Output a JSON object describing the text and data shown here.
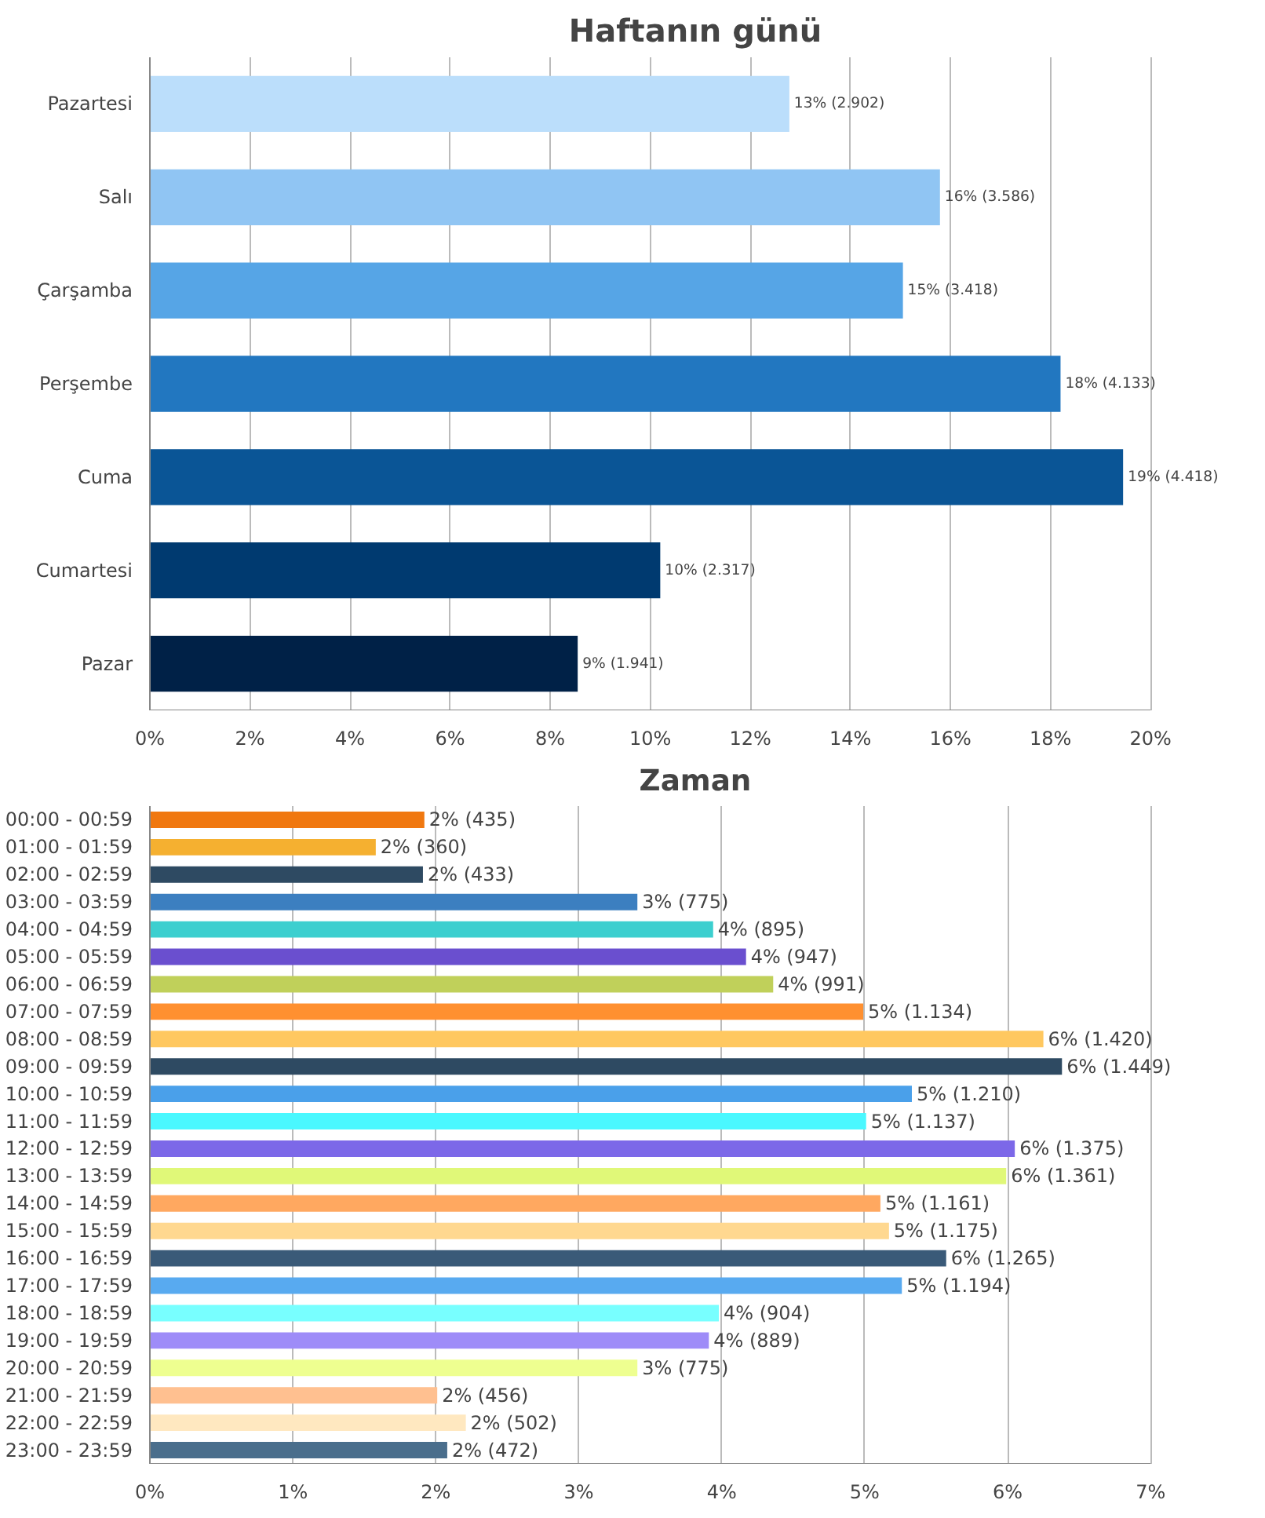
{
  "chart_data": [
    {
      "type": "bar",
      "orientation": "horizontal",
      "title": "Haftanın günü",
      "categories": [
        "Pazartesi",
        "Salı",
        "Çarşamba",
        "Perşembe",
        "Cuma",
        "Cumartesi",
        "Pazar"
      ],
      "values": [
        12.78,
        15.79,
        15.05,
        18.2,
        19.45,
        10.2,
        8.55
      ],
      "colors": [
        "#bbdefb",
        "#90c5f3",
        "#56a5e6",
        "#2277c0",
        "#0a5596",
        "#003a70",
        "#002147"
      ],
      "value_labels": [
        "13% (2.902)",
        "16% (3.586)",
        "15% (3.418)",
        "18% (4.133)",
        "19% (4.418)",
        "10% (2.317)",
        "9% (1.941)"
      ],
      "xlim": [
        0,
        20
      ],
      "xticks": [
        {
          "value": 0,
          "label": "0%"
        },
        {
          "value": 2,
          "label": "2%"
        },
        {
          "value": 4,
          "label": "4%"
        },
        {
          "value": 6,
          "label": "6%"
        },
        {
          "value": 8,
          "label": "8%"
        },
        {
          "value": 10,
          "label": "10%"
        },
        {
          "value": 12,
          "label": "12%"
        },
        {
          "value": 14,
          "label": "14%"
        },
        {
          "value": 16,
          "label": "16%"
        },
        {
          "value": 18,
          "label": "18%"
        },
        {
          "value": 20,
          "label": "20%"
        }
      ],
      "grid": "x"
    },
    {
      "type": "bar",
      "orientation": "horizontal",
      "title": "Zaman",
      "categories": [
        "00:00 - 00:59",
        "01:00 - 01:59",
        "02:00 - 02:59",
        "03:00 - 03:59",
        "04:00 - 04:59",
        "05:00 - 05:59",
        "06:00 - 06:59",
        "07:00 - 07:59",
        "08:00 - 08:59",
        "09:00 - 09:59",
        "10:00 - 10:59",
        "11:00 - 11:59",
        "12:00 - 12:59",
        "13:00 - 13:59",
        "14:00 - 14:59",
        "15:00 - 15:59",
        "16:00 - 16:59",
        "17:00 - 17:59",
        "18:00 - 18:59",
        "19:00 - 19:59",
        "20:00 - 20:59",
        "21:00 - 21:59",
        "22:00 - 22:59",
        "23:00 - 23:59"
      ],
      "values": [
        1.92,
        1.58,
        1.91,
        3.41,
        3.94,
        4.17,
        4.36,
        4.99,
        6.25,
        6.38,
        5.33,
        5.01,
        6.05,
        5.99,
        5.11,
        5.17,
        5.57,
        5.26,
        3.98,
        3.91,
        3.41,
        2.01,
        2.21,
        2.08
      ],
      "colors": [
        "#f07810",
        "#f5b030",
        "#2e4a62",
        "#3c7fc0",
        "#3ccfcf",
        "#6a4fcf",
        "#c0d05a",
        "#ff9030",
        "#ffc860",
        "#2e4a62",
        "#4aa0ea",
        "#4af8ff",
        "#7c68e8",
        "#e0f878",
        "#ffa860",
        "#ffd890",
        "#3a5a78",
        "#58aaf0",
        "#78ffff",
        "#9e8cf8",
        "#eeff90",
        "#ffc090",
        "#ffe8c0",
        "#4a6e8c"
      ],
      "value_labels": [
        "2% (435)",
        "2% (360)",
        "2% (433)",
        "3% (775)",
        "4% (895)",
        "4% (947)",
        "4% (991)",
        "5% (1.134)",
        "6% (1.420)",
        "6% (1.449)",
        "5% (1.210)",
        "5% (1.137)",
        "6% (1.375)",
        "6% (1.361)",
        "5% (1.161)",
        "5% (1.175)",
        "6% (1.265)",
        "5% (1.194)",
        "4% (904)",
        "4% (889)",
        "3% (775)",
        "2% (456)",
        "2% (502)",
        "2% (472)"
      ],
      "xlim": [
        0,
        7
      ],
      "xticks": [
        {
          "value": 0,
          "label": "0%"
        },
        {
          "value": 1,
          "label": "1%"
        },
        {
          "value": 2,
          "label": "2%"
        },
        {
          "value": 3,
          "label": "3%"
        },
        {
          "value": 4,
          "label": "4%"
        },
        {
          "value": 5,
          "label": "5%"
        },
        {
          "value": 6,
          "label": "6%"
        },
        {
          "value": 7,
          "label": "7%"
        }
      ],
      "grid": "x"
    }
  ]
}
